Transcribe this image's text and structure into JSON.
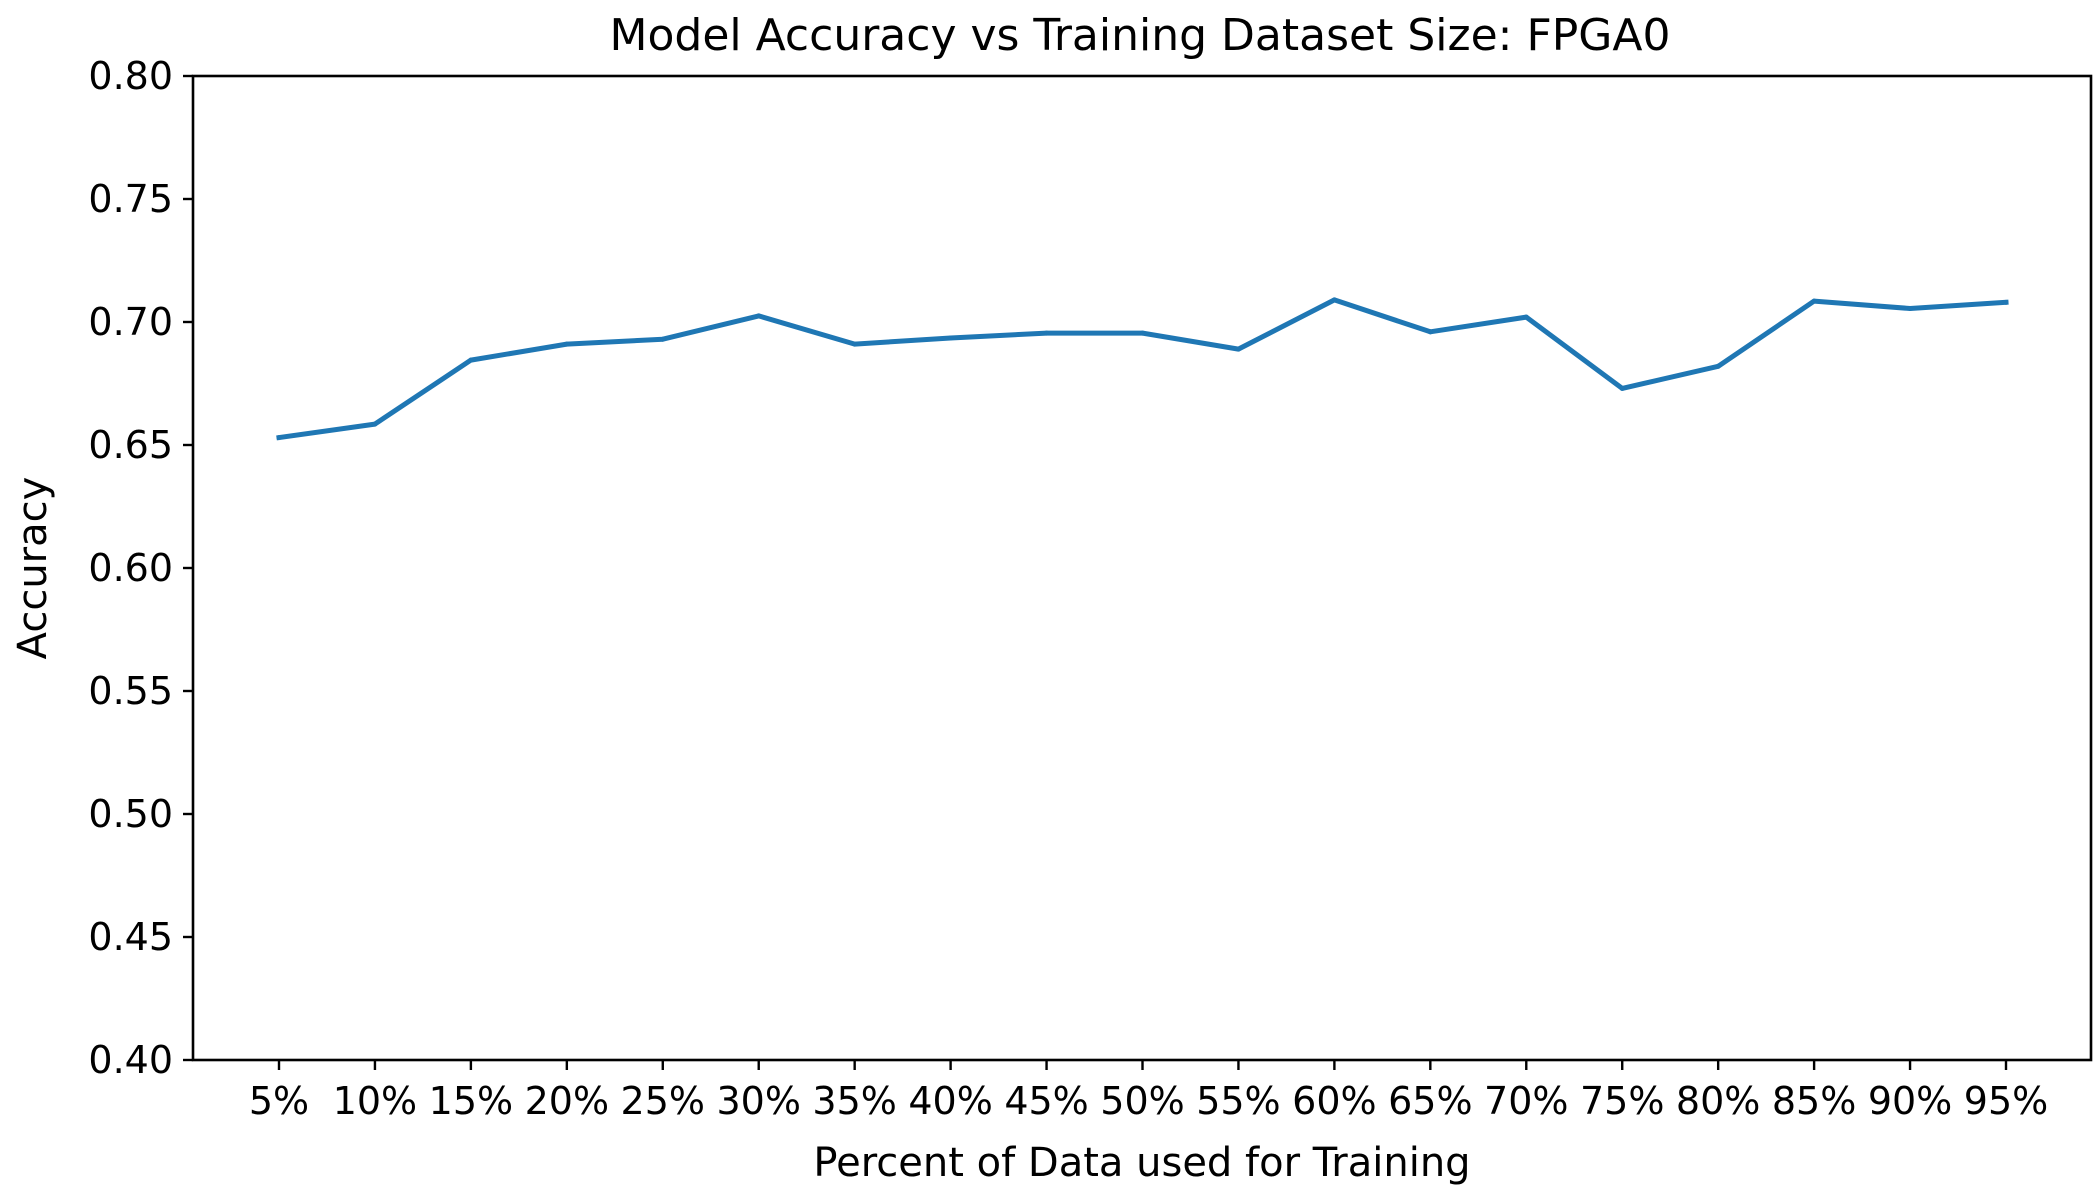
{
  "chart_data": {
    "type": "line",
    "title": "Model Accuracy vs Training Dataset Size: FPGA0",
    "xlabel": "Percent of Data used for Training",
    "ylabel": "Accuracy",
    "categories": [
      "5%",
      "10%",
      "15%",
      "20%",
      "25%",
      "30%",
      "35%",
      "40%",
      "45%",
      "50%",
      "55%",
      "60%",
      "65%",
      "70%",
      "75%",
      "80%",
      "85%",
      "90%",
      "95%"
    ],
    "series": [
      {
        "color": "#1f77b4",
        "values": [
          0.653,
          0.6585,
          0.6845,
          0.691,
          0.693,
          0.7025,
          0.691,
          0.6935,
          0.6955,
          0.6955,
          0.689,
          0.709,
          0.696,
          0.702,
          0.673,
          0.682,
          0.7085,
          0.7055,
          0.708
        ]
      }
    ],
    "ylim": [
      0.4,
      0.8
    ],
    "yticks": [
      "0.40",
      "0.45",
      "0.50",
      "0.55",
      "0.60",
      "0.65",
      "0.70",
      "0.75",
      "0.80"
    ],
    "grid": false,
    "legend": "none"
  }
}
